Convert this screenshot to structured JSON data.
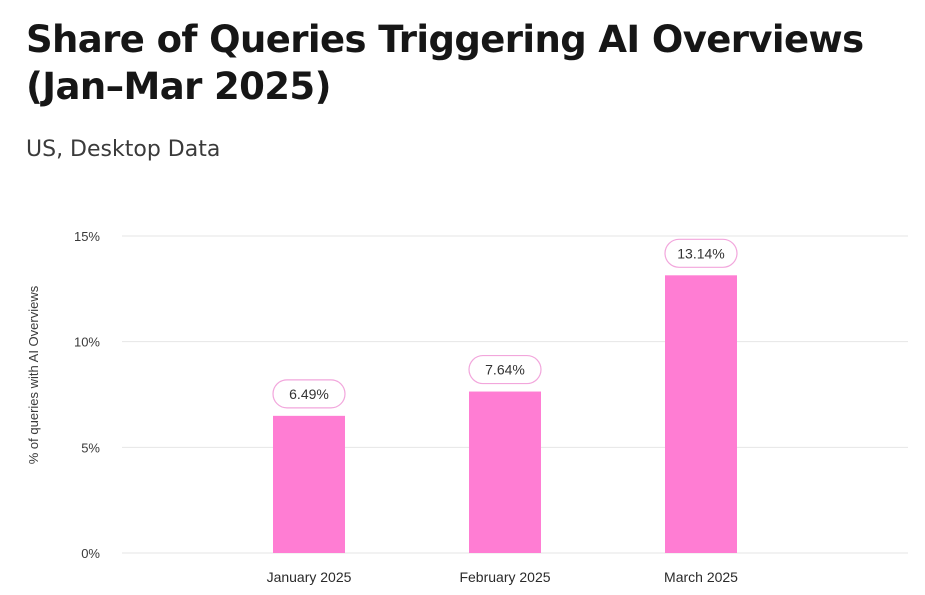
{
  "chart_data": {
    "type": "bar",
    "title_line1": "Share of Queries Triggering AI Overviews",
    "title_line2": "(Jan–Mar 2025)",
    "subtitle": "US, Desktop Data",
    "xlabel": "",
    "ylabel": "% of queries with AI Overviews",
    "categories": [
      "January 2025",
      "February 2025",
      "March 2025"
    ],
    "values": [
      6.49,
      7.64,
      13.14
    ],
    "value_labels": [
      "6.49%",
      "7.64%",
      "13.14%"
    ],
    "ylim": [
      0,
      15
    ],
    "yticks": [
      0,
      5,
      10,
      15
    ],
    "ytick_labels": [
      "0%",
      "5%",
      "10%",
      "15%"
    ],
    "grid": true,
    "legend": "none",
    "colors": {
      "bar": "#ff7dd3",
      "label_border": "#f2a6dc",
      "grid": "#e6e6e6",
      "axis_text": "#3a3a3a"
    }
  }
}
